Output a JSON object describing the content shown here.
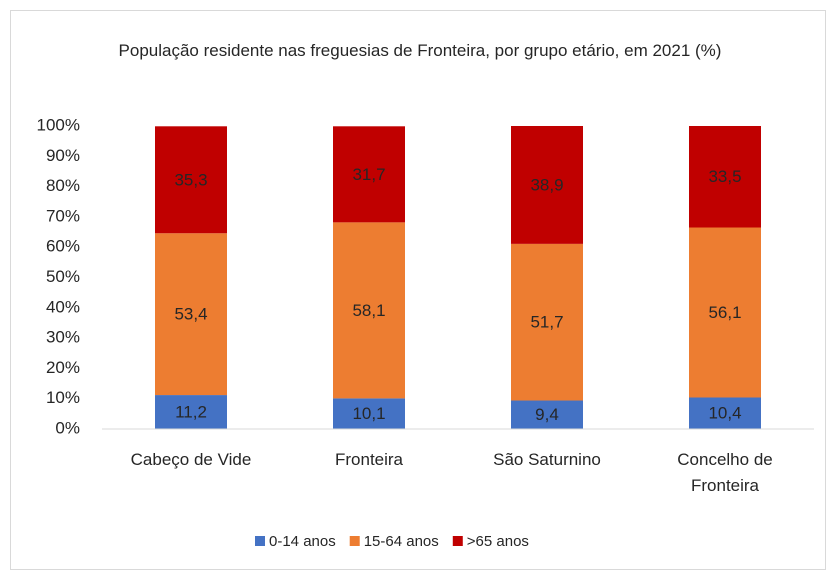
{
  "chart_data": {
    "type": "stacked_bar",
    "title": "População residente nas freguesias de Fronteira, por grupo etário, em 2021 (%)",
    "categories": [
      "Cabeço de Vide",
      "Fronteira",
      "São Saturnino",
      "Concelho de Fronteira"
    ],
    "series": [
      {
        "name": "0-14 anos",
        "color": "#4472c4",
        "values": [
          11.2,
          10.1,
          9.4,
          10.4
        ],
        "value_labels": [
          "11,2",
          "10,1",
          "9,4",
          "10,4"
        ]
      },
      {
        "name": "15-64 anos",
        "color": "#ed7d31",
        "values": [
          53.4,
          58.1,
          51.7,
          56.1
        ],
        "value_labels": [
          "53,4",
          "58,1",
          "51,7",
          "56,1"
        ]
      },
      {
        "name": ">65 anos",
        "color": "#c00000",
        "values": [
          35.3,
          31.7,
          38.9,
          33.5
        ],
        "value_labels": [
          "35,3",
          "31,7",
          "38,9",
          "33,5"
        ]
      }
    ],
    "ylim": [
      0,
      100
    ],
    "yticks": [
      {
        "value": 0,
        "label": "0%"
      },
      {
        "value": 10,
        "label": "10%"
      },
      {
        "value": 20,
        "label": "20%"
      },
      {
        "value": 30,
        "label": "30%"
      },
      {
        "value": 40,
        "label": "40%"
      },
      {
        "value": 50,
        "label": "50%"
      },
      {
        "value": 60,
        "label": "60%"
      },
      {
        "value": 70,
        "label": "70%"
      },
      {
        "value": 80,
        "label": "80%"
      },
      {
        "value": 90,
        "label": "90%"
      },
      {
        "value": 100,
        "label": "100%"
      }
    ],
    "grid": false,
    "legend": "bottom"
  }
}
